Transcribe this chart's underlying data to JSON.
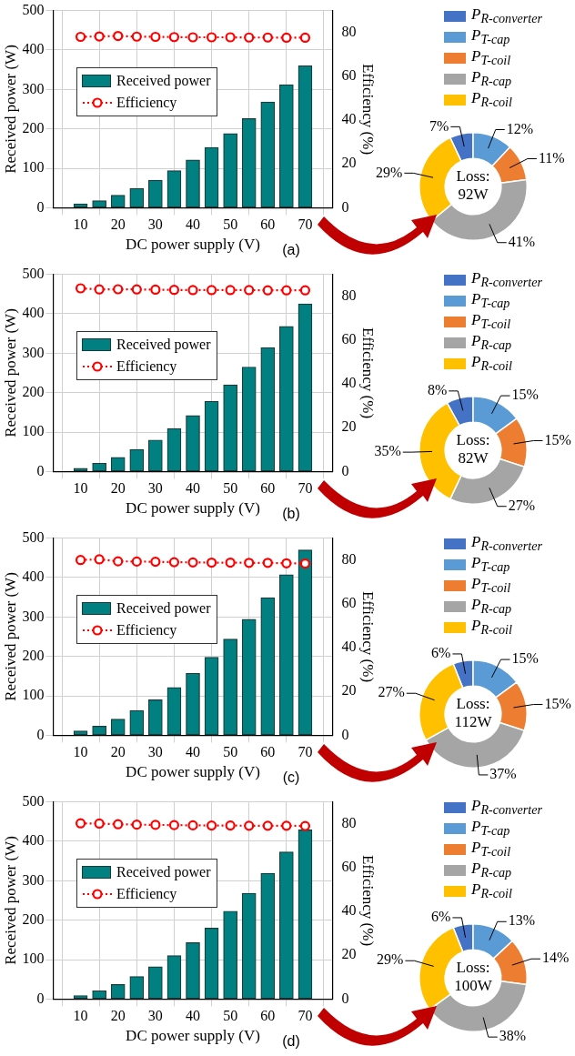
{
  "chart_data": [
    {
      "type": "bar",
      "xlabel": "DC power supply (V)",
      "ylabel": "Received power (W)",
      "y2label": "Efficiency (%)",
      "x": [
        10,
        15,
        20,
        25,
        30,
        35,
        40,
        45,
        50,
        55,
        60,
        65,
        70
      ],
      "xlim": [
        8,
        72
      ],
      "xticks": [
        10,
        20,
        30,
        40,
        50,
        60,
        70
      ],
      "ylim": [
        0,
        500
      ],
      "yticks": [
        0,
        100,
        200,
        300,
        400,
        500
      ],
      "y2lim": [
        0,
        90
      ],
      "y2ticks": [
        0,
        20,
        40,
        60,
        80
      ],
      "grid": true,
      "legend": "top left",
      "annotations": [
        "(a)"
      ],
      "series": [
        {
          "name": "Received power",
          "color": "#008080",
          "values": [
            10,
            18,
            32,
            49,
            70,
            94,
            121,
            153,
            188,
            226,
            268,
            312,
            360
          ]
        },
        {
          "name": "Efficiency",
          "type": "line",
          "axis": "y2",
          "color": "#ff0000",
          "marker": "circle",
          "line_style": "dotted",
          "values": [
            78.0,
            78.2,
            78.4,
            78.1,
            78.0,
            77.9,
            77.8,
            77.8,
            77.8,
            77.7,
            77.7,
            77.6,
            77.6
          ]
        }
      ]
    },
    {
      "type": "donut",
      "categories": [
        "P$_{R-converter}$",
        "P$_{T-cap}$",
        "P$_{T-coil}$",
        "P$_{R-cap}$",
        "P$_{R-coil}$"
      ],
      "values": [
        7,
        12,
        11,
        41,
        29
      ],
      "value_labels": [
        "7%",
        "12%",
        "11%",
        "41%",
        "29%"
      ],
      "colors": [
        "#4472c4",
        "#5b9bd5",
        "#ed7d31",
        "#a5a5a5",
        "#ffc000"
      ],
      "legend": "top",
      "annotations": [
        "Loss:\n92W"
      ]
    },
    {
      "type": "bar",
      "xlabel": "DC power supply (V)",
      "ylabel": "Received power (W)",
      "y2label": "Efficiency (%)",
      "x": [
        10,
        15,
        20,
        25,
        30,
        35,
        40,
        45,
        50,
        55,
        60,
        65,
        70
      ],
      "xlim": [
        8,
        72
      ],
      "xticks": [
        10,
        20,
        30,
        40,
        50,
        60,
        70
      ],
      "ylim": [
        0,
        500
      ],
      "yticks": [
        0,
        100,
        200,
        300,
        400,
        500
      ],
      "y2lim": [
        0,
        90
      ],
      "y2ticks": [
        0,
        20,
        40,
        60,
        80
      ],
      "grid": true,
      "legend": "top left",
      "annotations": [
        "(b)"
      ],
      "series": [
        {
          "name": "Received power",
          "color": "#008080",
          "values": [
            8,
            21,
            36,
            56,
            80,
            109,
            142,
            178,
            220,
            265,
            314,
            368,
            425
          ]
        },
        {
          "name": "Efficiency",
          "type": "line",
          "axis": "y2",
          "color": "#ff0000",
          "marker": "circle",
          "line_style": "dotted",
          "values": [
            83.6,
            83.1,
            83.2,
            83.1,
            83.0,
            82.9,
            82.8,
            82.8,
            82.8,
            82.8,
            82.7,
            82.7,
            82.7
          ]
        }
      ]
    },
    {
      "type": "donut",
      "categories": [
        "P$_{R-converter}$",
        "P$_{T-cap}$",
        "P$_{T-coil}$",
        "P$_{R-cap}$",
        "P$_{R-coil}$"
      ],
      "values": [
        8,
        15,
        15,
        27,
        35
      ],
      "value_labels": [
        "8%",
        "15%",
        "15%",
        "27%",
        "35%"
      ],
      "colors": [
        "#4472c4",
        "#5b9bd5",
        "#ed7d31",
        "#a5a5a5",
        "#ffc000"
      ],
      "legend": "top",
      "annotations": [
        "Loss:\n82W"
      ]
    },
    {
      "type": "bar",
      "xlabel": "DC power supply (V)",
      "ylabel": "Received power (W)",
      "y2label": "Efficiency (%)",
      "x": [
        10,
        15,
        20,
        25,
        30,
        35,
        40,
        45,
        50,
        55,
        60,
        65,
        70
      ],
      "xlim": [
        8,
        72
      ],
      "xticks": [
        10,
        20,
        30,
        40,
        50,
        60,
        70
      ],
      "ylim": [
        0,
        500
      ],
      "yticks": [
        0,
        100,
        200,
        300,
        400,
        500
      ],
      "y2lim": [
        0,
        90
      ],
      "y2ticks": [
        0,
        20,
        40,
        60,
        80
      ],
      "grid": true,
      "legend": "top left",
      "annotations": [
        "(c)"
      ],
      "series": [
        {
          "name": "Received power",
          "color": "#008080",
          "values": [
            11,
            23,
            41,
            63,
            90,
            121,
            157,
            198,
            244,
            294,
            349,
            407,
            470
          ]
        },
        {
          "name": "Efficiency",
          "type": "line",
          "axis": "y2",
          "color": "#ff0000",
          "marker": "circle",
          "line_style": "dotted",
          "values": [
            80.0,
            80.3,
            79.4,
            79.3,
            79.2,
            79.0,
            78.9,
            78.8,
            78.8,
            78.7,
            78.7,
            78.5,
            78.4
          ]
        }
      ]
    },
    {
      "type": "donut",
      "categories": [
        "P$_{R-converter}$",
        "P$_{T-cap}$",
        "P$_{T-coil}$",
        "P$_{R-cap}$",
        "P$_{R-coil}$"
      ],
      "values": [
        6,
        15,
        15,
        37,
        27
      ],
      "value_labels": [
        "6%",
        "15%",
        "15%",
        "37%",
        "27%"
      ],
      "colors": [
        "#4472c4",
        "#5b9bd5",
        "#ed7d31",
        "#a5a5a5",
        "#ffc000"
      ],
      "legend": "top",
      "annotations": [
        "Loss:\n112W"
      ]
    },
    {
      "type": "bar",
      "xlabel": "DC power supply (V)",
      "ylabel": "Received power (W)",
      "y2label": "Efficiency (%)",
      "x": [
        10,
        15,
        20,
        25,
        30,
        35,
        40,
        45,
        50,
        55,
        60,
        65,
        70
      ],
      "xlim": [
        8,
        72
      ],
      "xticks": [
        10,
        20,
        30,
        40,
        50,
        60,
        70
      ],
      "ylim": [
        0,
        500
      ],
      "yticks": [
        0,
        100,
        200,
        300,
        400,
        500
      ],
      "y2lim": [
        0,
        90
      ],
      "y2ticks": [
        0,
        20,
        40,
        60,
        80
      ],
      "grid": true,
      "legend": "top left",
      "annotations": [
        "(d)"
      ],
      "series": [
        {
          "name": "Received power",
          "color": "#008080",
          "values": [
            9,
            21,
            37,
            57,
            82,
            110,
            143,
            180,
            223,
            268,
            319,
            373,
            429
          ]
        },
        {
          "name": "Efficiency",
          "type": "line",
          "axis": "y2",
          "color": "#ff0000",
          "marker": "circle",
          "line_style": "dotted",
          "values": [
            80.2,
            80.1,
            79.8,
            79.6,
            79.5,
            79.4,
            79.3,
            79.2,
            79.2,
            79.1,
            79.1,
            79.1,
            79.0
          ]
        }
      ]
    },
    {
      "type": "donut",
      "categories": [
        "P$_{R-converter}$",
        "P$_{T-cap}$",
        "P$_{T-coil}$",
        "P$_{R-cap}$",
        "P$_{R-coil}$"
      ],
      "values": [
        6,
        13,
        14,
        38,
        29
      ],
      "value_labels": [
        "6%",
        "13%",
        "14%",
        "38%",
        "29%"
      ],
      "colors": [
        "#4472c4",
        "#5b9bd5",
        "#ed7d31",
        "#a5a5a5",
        "#ffc000"
      ],
      "legend": "top",
      "annotations": [
        "Loss:\n100W"
      ]
    }
  ]
}
